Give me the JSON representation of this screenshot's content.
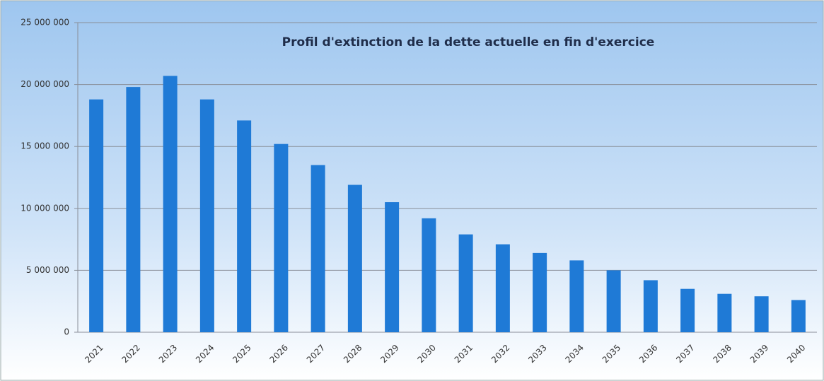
{
  "chart_data": {
    "type": "bar",
    "title": "Profil d'extinction de la dette actuelle en fin d'exercice",
    "categories": [
      "2021",
      "2022",
      "2023",
      "2024",
      "2025",
      "2026",
      "2027",
      "2028",
      "2029",
      "2030",
      "2031",
      "2032",
      "2033",
      "2034",
      "2035",
      "2036",
      "2037",
      "2038",
      "2039",
      "2040"
    ],
    "values": [
      18800000,
      19800000,
      20700000,
      18800000,
      17100000,
      15200000,
      13500000,
      11900000,
      10500000,
      9200000,
      7900000,
      7100000,
      6400000,
      5800000,
      5000000,
      4200000,
      3500000,
      3100000,
      2900000,
      2600000
    ],
    "color": "#1f7ad6",
    "ylim": [
      0,
      25000000
    ],
    "yticks": [
      0,
      {
        "value": 5000000,
        "label": "5 000 000"
      },
      {
        "value": 10000000,
        "label": "10 000 000"
      },
      {
        "value": 15000000,
        "label": "15 000 000"
      },
      {
        "value": 20000000,
        "label": "20 000 000"
      },
      {
        "value": 25000000,
        "label": "25 000 000"
      }
    ],
    "grid": true
  }
}
